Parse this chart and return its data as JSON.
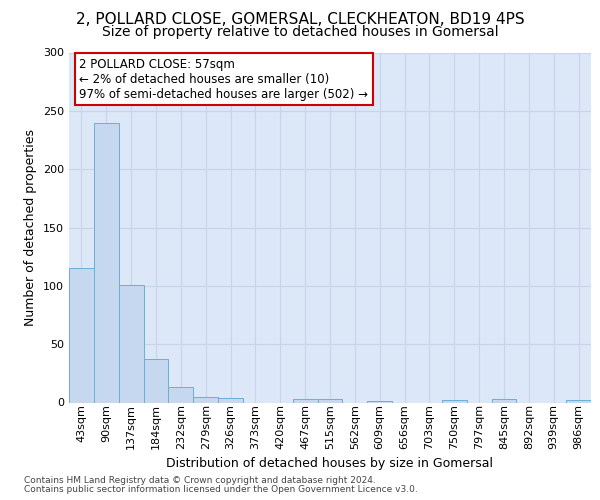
{
  "title_line1": "2, POLLARD CLOSE, GOMERSAL, CLECKHEATON, BD19 4PS",
  "title_line2": "Size of property relative to detached houses in Gomersal",
  "xlabel": "Distribution of detached houses by size in Gomersal",
  "ylabel": "Number of detached properties",
  "bar_labels": [
    "43sqm",
    "90sqm",
    "137sqm",
    "184sqm",
    "232sqm",
    "279sqm",
    "326sqm",
    "373sqm",
    "420sqm",
    "467sqm",
    "515sqm",
    "562sqm",
    "609sqm",
    "656sqm",
    "703sqm",
    "750sqm",
    "797sqm",
    "845sqm",
    "892sqm",
    "939sqm",
    "986sqm"
  ],
  "bar_values": [
    115,
    240,
    101,
    37,
    13,
    5,
    4,
    0,
    0,
    3,
    3,
    0,
    1,
    0,
    0,
    2,
    0,
    3,
    0,
    0,
    2
  ],
  "bar_color": "#c5d8f0",
  "bar_edge_color": "#6aaed6",
  "ylim": [
    0,
    300
  ],
  "yticks": [
    0,
    50,
    100,
    150,
    200,
    250,
    300
  ],
  "annotation_text_line1": "2 POLLARD CLOSE: 57sqm",
  "annotation_text_line2": "← 2% of detached houses are smaller (10)",
  "annotation_text_line3": "97% of semi-detached houses are larger (502) →",
  "annotation_box_edge_color": "#cc0000",
  "grid_color": "#c8d4e8",
  "bg_color": "#dce8f8",
  "footer_line1": "Contains HM Land Registry data © Crown copyright and database right 2024.",
  "footer_line2": "Contains public sector information licensed under the Open Government Licence v3.0.",
  "title1_fontsize": 11,
  "title2_fontsize": 10,
  "ylabel_fontsize": 9,
  "xlabel_fontsize": 9,
  "tick_fontsize": 8,
  "footer_fontsize": 6.5
}
